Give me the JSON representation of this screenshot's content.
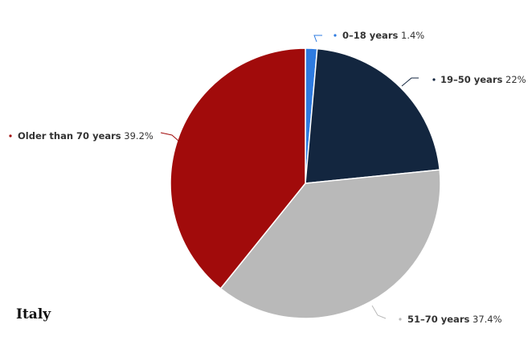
{
  "chart_data": {
    "type": "pie",
    "title": "",
    "slices": [
      {
        "label": "0–18 years",
        "value": 1.4,
        "value_text": "1.4%",
        "color": "#2e7be0"
      },
      {
        "label": "19–50 years",
        "value": 22,
        "value_text": "22%",
        "color": "#13263f"
      },
      {
        "label": "51–70 years",
        "value": 37.4,
        "value_text": "37.4%",
        "color": "#b9b9b9"
      },
      {
        "label": "Older than 70 years",
        "value": 39.2,
        "value_text": "39.2%",
        "color": "#a10b0b"
      }
    ],
    "start_angle_deg": 0,
    "direction": "clockwise",
    "legend": "none",
    "data_labels": "outside with connector lines"
  },
  "caption": {
    "text": "Italy"
  }
}
